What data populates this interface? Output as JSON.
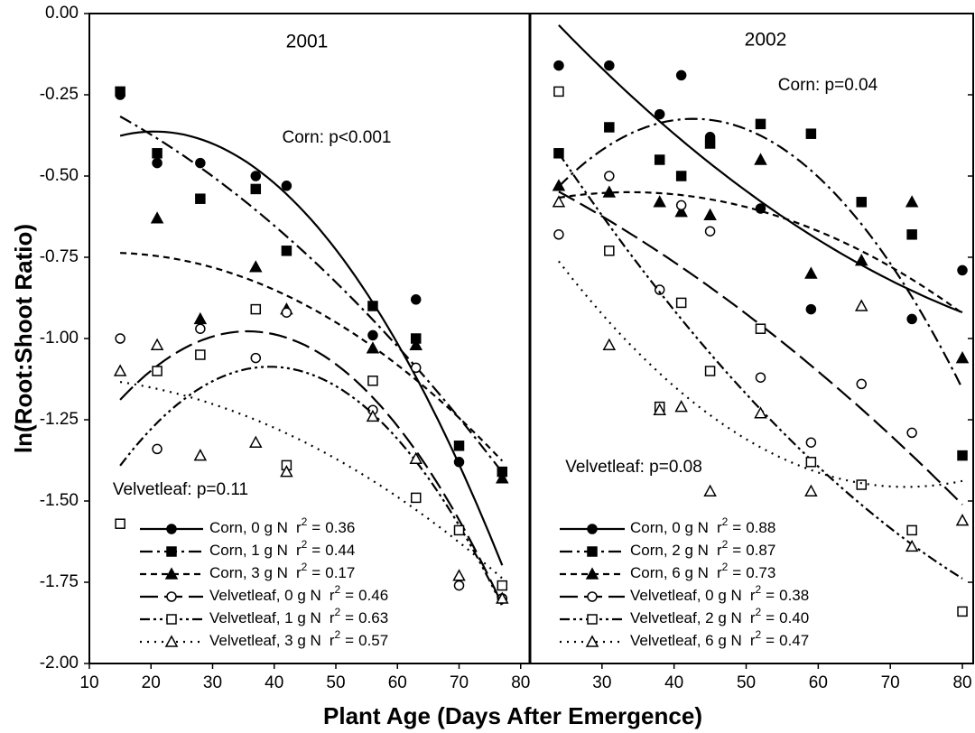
{
  "shared": {
    "ylabel": "ln(Root:Shoot Ratio)",
    "xlabel": "Plant Age (Days After Emergence)"
  },
  "chart_data": [
    {
      "type": "scatter",
      "title": "2001",
      "annotations": [
        "Corn: p<0.001",
        "Velvetleaf: p=0.11"
      ],
      "stat": {
        "r": "r",
        "sup": "2",
        "eq": "="
      },
      "xlim": [
        10,
        81.5
      ],
      "xticks": [
        10,
        20,
        30,
        40,
        50,
        60,
        70,
        80
      ],
      "ylim": [
        -2,
        0
      ],
      "yticks": [
        {
          "value": 0,
          "label": "0.00"
        },
        {
          "value": -0.25,
          "label": "-0.25"
        },
        {
          "value": -0.5,
          "label": "-0.50"
        },
        {
          "value": -0.75,
          "label": "-0.75"
        },
        {
          "value": -1,
          "label": "-1.00"
        },
        {
          "value": -1.25,
          "label": "-1.25"
        },
        {
          "value": -1.5,
          "label": "-1.50"
        },
        {
          "value": -1.75,
          "label": "-1.75"
        },
        {
          "value": -2,
          "label": "-2.00"
        }
      ],
      "x": [
        15,
        21,
        28,
        37,
        42,
        56,
        63,
        70,
        77
      ],
      "series": [
        {
          "name": "Corn, 0 g N",
          "r2": 0.36,
          "color": "#000",
          "marker": "circle",
          "filled": true,
          "line_style": "solid",
          "values": [
            -0.25,
            -0.46,
            -0.46,
            -0.5,
            -0.53,
            -0.99,
            -0.88,
            -1.38,
            -1.8
          ]
        },
        {
          "name": "Corn, 1 g N",
          "r2": 0.44,
          "color": "#000",
          "marker": "square",
          "filled": true,
          "line_style": "dashdot",
          "values": [
            -0.24,
            -0.43,
            -0.57,
            -0.54,
            -0.73,
            -0.9,
            -1.0,
            -1.33,
            -1.41
          ]
        },
        {
          "name": "Corn, 3 g N",
          "r2": 0.17,
          "color": "#000",
          "marker": "triangle",
          "filled": true,
          "line_style": "dashed",
          "values": [
            null,
            -0.63,
            -0.94,
            -0.78,
            -0.91,
            -1.03,
            -1.02,
            null,
            -1.43
          ]
        },
        {
          "name": "Velvetleaf, 0 g N",
          "r2": 0.46,
          "color": "#000",
          "marker": "circle",
          "filled": false,
          "line_style": "longdash",
          "values": [
            -1.0,
            -1.34,
            -0.97,
            -1.06,
            -0.92,
            -1.22,
            -1.09,
            -1.76,
            -1.8
          ]
        },
        {
          "name": "Velvetleaf, 1 g N",
          "r2": 0.63,
          "color": "#000",
          "marker": "square",
          "filled": false,
          "line_style": "dashdotdot",
          "values": [
            -1.57,
            -1.1,
            -1.05,
            -0.91,
            -1.39,
            -1.13,
            -1.49,
            -1.59,
            -1.76
          ]
        },
        {
          "name": "Velvetleaf, 3 g N",
          "r2": 0.57,
          "color": "#000",
          "marker": "triangle",
          "filled": false,
          "line_style": "dotted",
          "values": [
            -1.1,
            -1.02,
            -1.36,
            -1.32,
            -1.41,
            -1.24,
            -1.37,
            -1.73,
            -1.8
          ]
        }
      ]
    },
    {
      "type": "scatter",
      "title": "2002",
      "annotations": [
        "Corn: p=0.04",
        "Velvetleaf: p=0.08"
      ],
      "stat": {
        "r": "r",
        "sup": "2",
        "eq": "="
      },
      "xlim": [
        20,
        81.5
      ],
      "xticks": [
        30,
        40,
        50,
        60,
        70,
        80
      ],
      "ylim": [
        -2,
        0
      ],
      "yticks": [
        0,
        -0.25,
        -0.5,
        -0.75,
        -1,
        -1.25,
        -1.5,
        -1.75,
        -2
      ],
      "x": [
        24,
        31,
        38,
        41,
        45,
        52,
        59,
        66,
        73,
        80
      ],
      "series": [
        {
          "name": "Corn, 0 g N",
          "r2": 0.88,
          "color": "#000",
          "marker": "circle",
          "filled": true,
          "line_style": "solid",
          "values": [
            -0.16,
            -0.16,
            -0.31,
            -0.19,
            -0.38,
            -0.6,
            -0.91,
            null,
            -0.94,
            -0.79
          ]
        },
        {
          "name": "Corn, 2 g N",
          "r2": 0.87,
          "color": "#000",
          "marker": "square",
          "filled": true,
          "line_style": "dashdot",
          "values": [
            -0.43,
            -0.35,
            -0.45,
            -0.5,
            -0.4,
            -0.34,
            -0.37,
            -0.58,
            -0.68,
            -1.36
          ]
        },
        {
          "name": "Corn, 6 g N",
          "r2": 0.73,
          "color": "#000",
          "marker": "triangle",
          "filled": true,
          "line_style": "dashed",
          "values": [
            -0.53,
            -0.55,
            -0.58,
            -0.61,
            -0.62,
            -0.45,
            -0.8,
            -0.76,
            -0.58,
            -1.06
          ]
        },
        {
          "name": "Velvetleaf, 0 g N",
          "r2": 0.38,
          "color": "#000",
          "marker": "circle",
          "filled": false,
          "line_style": "longdash",
          "values": [
            -0.68,
            -0.5,
            -0.85,
            -0.59,
            -0.67,
            -1.12,
            -1.32,
            -1.14,
            -1.29,
            null
          ]
        },
        {
          "name": "Velvetleaf, 2 g N",
          "r2": 0.4,
          "r2_label": "0.40",
          "color": "#000",
          "marker": "square",
          "filled": false,
          "line_style": "dashdotdot",
          "values": [
            -0.24,
            -0.73,
            -1.21,
            -0.89,
            -1.1,
            -0.97,
            -1.38,
            -1.45,
            -1.59,
            -1.84
          ]
        },
        {
          "name": "Velvetleaf, 6 g N",
          "r2": 0.47,
          "color": "#000",
          "marker": "triangle",
          "filled": false,
          "line_style": "dotted",
          "values": [
            -0.58,
            -1.02,
            -1.22,
            -1.21,
            -1.47,
            -1.23,
            -1.47,
            -0.9,
            -1.64,
            -1.56
          ]
        }
      ]
    }
  ]
}
